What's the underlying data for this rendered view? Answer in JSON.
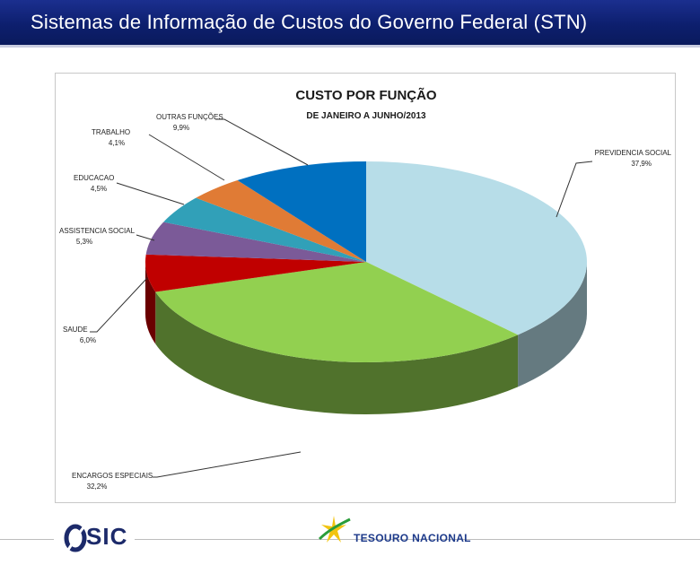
{
  "header": {
    "title": "Sistemas de Informação de Custos do Governo Federal (STN)"
  },
  "footer": {
    "sic_logo_text": "SIC",
    "tesouro_logo_text": "TESOURO NACIONAL"
  },
  "chart_data": {
    "type": "pie",
    "title": "CUSTO POR FUNÇÃO",
    "subtitle": "DE JANEIRO A JUNHO/2013",
    "slices": [
      {
        "label": "PREVIDENCIA SOCIAL",
        "value": 37.9,
        "display": "37,9%",
        "color": "#b7dde8"
      },
      {
        "label": "ENCARGOS ESPECIAIS",
        "value": 32.2,
        "display": "32,2%",
        "color": "#92d050"
      },
      {
        "label": "SAUDE",
        "value": 6.0,
        "display": "6,0%",
        "color": "#c00000"
      },
      {
        "label": "ASSISTENCIA SOCIAL",
        "value": 5.3,
        "display": "5,3%",
        "color": "#7b5a98"
      },
      {
        "label": "EDUCACAO",
        "value": 4.5,
        "display": "4,5%",
        "color": "#31a0b8"
      },
      {
        "label": "TRABALHO",
        "value": 4.1,
        "display": "4,1%",
        "color": "#e07b35"
      },
      {
        "label": "OUTRAS FUNÇÕES",
        "value": 9.9,
        "display": "9,9%",
        "color": "#0070c0"
      }
    ],
    "legend": "none"
  }
}
